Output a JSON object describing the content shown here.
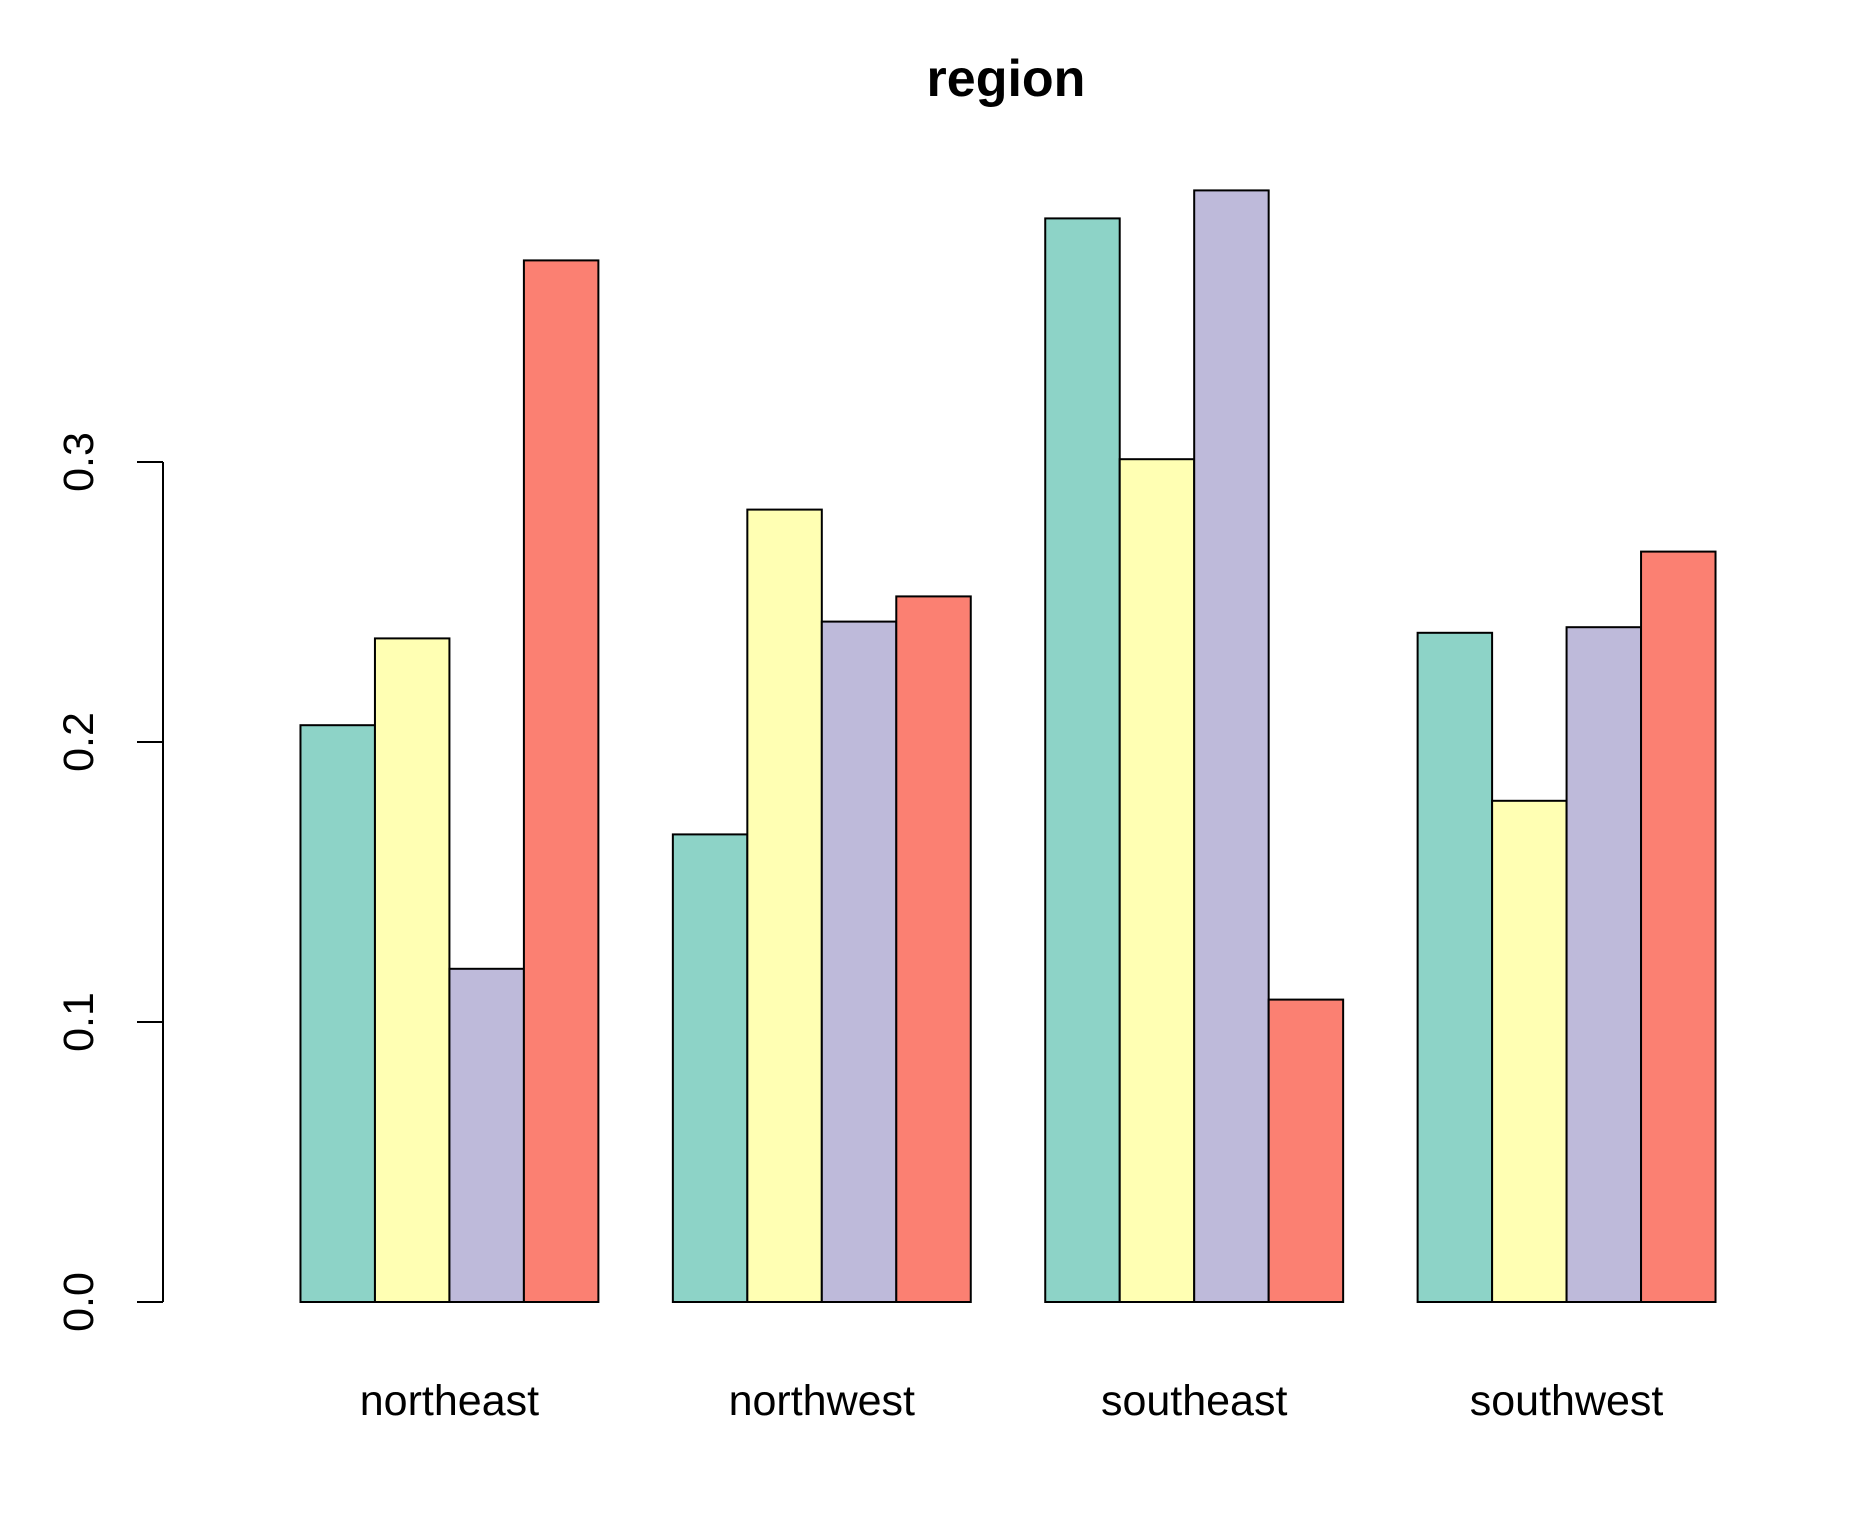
{
  "chart_data": {
    "type": "bar",
    "title": "region",
    "xlabel": "",
    "ylabel": "",
    "categories": [
      "northeast",
      "northwest",
      "southeast",
      "southwest"
    ],
    "ylim": [
      0,
      0.4
    ],
    "yticks": [
      0.0,
      0.1,
      0.2,
      0.3
    ],
    "ytick_labels": [
      "0.0",
      "0.1",
      "0.2",
      "0.3"
    ],
    "grid": false,
    "legend": false,
    "series_colors": [
      "#8DD3C7",
      "#FFFFB3",
      "#BEBADA",
      "#FB8072"
    ],
    "series": [
      {
        "values": [
          0.206,
          0.167,
          0.387,
          0.239
        ]
      },
      {
        "values": [
          0.237,
          0.283,
          0.301,
          0.179
        ]
      },
      {
        "values": [
          0.119,
          0.243,
          0.397,
          0.241
        ]
      },
      {
        "values": [
          0.372,
          0.252,
          0.108,
          0.268
        ]
      }
    ]
  }
}
